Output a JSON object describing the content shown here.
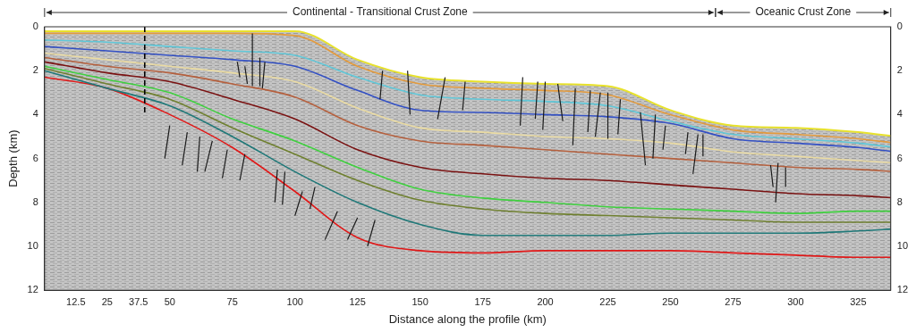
{
  "chart_data": {
    "type": "line",
    "xlabel": "Distance along the profile (km)",
    "ylabel": "Depth (km)",
    "x": [
      0,
      25,
      50,
      75,
      100,
      125,
      150,
      175,
      200,
      225,
      250,
      275,
      300,
      325,
      340
    ],
    "series": [
      {
        "color": "#e8e22c",
        "values": [
          0.2,
          0.2,
          0.2,
          0.2,
          0.2,
          1.5,
          2.3,
          2.5,
          2.6,
          2.7,
          3.8,
          4.5,
          4.6,
          4.8,
          5.0
        ]
      },
      {
        "color": "#e39a3c",
        "values": [
          0.3,
          0.3,
          0.3,
          0.3,
          0.4,
          1.8,
          2.6,
          2.8,
          2.9,
          3.1,
          4.0,
          4.7,
          4.9,
          5.1,
          5.3
        ]
      },
      {
        "color": "#5fc7d8",
        "values": [
          0.6,
          0.7,
          0.9,
          1.1,
          1.3,
          2.3,
          3.1,
          3.3,
          3.4,
          3.6,
          4.3,
          4.9,
          5.1,
          5.3,
          5.5
        ]
      },
      {
        "color": "#3350c4",
        "values": [
          0.9,
          1.1,
          1.3,
          1.5,
          1.8,
          2.9,
          3.8,
          3.9,
          4.0,
          4.1,
          4.4,
          5.1,
          5.3,
          5.5,
          5.7
        ]
      },
      {
        "color": "#eadba2",
        "values": [
          1.2,
          1.5,
          1.8,
          2.1,
          2.5,
          3.7,
          4.6,
          4.8,
          5.0,
          5.1,
          5.3,
          5.7,
          5.9,
          6.1,
          6.2
        ]
      },
      {
        "color": "#b5603e",
        "values": [
          1.4,
          1.8,
          2.1,
          2.6,
          3.2,
          4.5,
          5.2,
          5.4,
          5.6,
          5.8,
          6.0,
          6.2,
          6.4,
          6.5,
          6.6
        ]
      },
      {
        "color": "#7a1212",
        "values": [
          1.6,
          2.1,
          2.5,
          3.3,
          4.2,
          5.6,
          6.4,
          6.7,
          6.9,
          7.0,
          7.2,
          7.4,
          7.6,
          7.7,
          7.8
        ]
      },
      {
        "color": "#3fd03f",
        "values": [
          1.8,
          2.4,
          3.0,
          4.2,
          5.2,
          6.4,
          7.4,
          7.8,
          8.0,
          8.2,
          8.3,
          8.4,
          8.5,
          8.4,
          8.4
        ]
      },
      {
        "color": "#6f8030",
        "values": [
          1.9,
          2.6,
          3.3,
          4.6,
          5.8,
          7.0,
          7.9,
          8.3,
          8.5,
          8.6,
          8.7,
          8.8,
          8.9,
          8.9,
          8.9
        ]
      },
      {
        "color": "#1f7878",
        "values": [
          2.0,
          2.8,
          3.6,
          5.0,
          6.6,
          8.0,
          9.0,
          9.5,
          9.5,
          9.5,
          9.4,
          9.4,
          9.4,
          9.3,
          9.2
        ]
      },
      {
        "color": "#e01818",
        "values": [
          2.3,
          2.8,
          4.0,
          5.5,
          7.5,
          9.6,
          10.2,
          10.3,
          10.2,
          10.2,
          10.2,
          10.3,
          10.4,
          10.5,
          10.5
        ]
      }
    ],
    "faults": [
      {
        "x": [
          77,
          78
        ],
        "y": [
          1.6,
          2.3
        ]
      },
      {
        "x": [
          80,
          81
        ],
        "y": [
          1.8,
          2.6
        ]
      },
      {
        "x": [
          83,
          83
        ],
        "y": [
          0.3,
          2.7
        ]
      },
      {
        "x": [
          86,
          86
        ],
        "y": [
          1.4,
          2.7
        ]
      },
      {
        "x": [
          88,
          87
        ],
        "y": [
          1.6,
          2.8
        ]
      },
      {
        "x": [
          50,
          48
        ],
        "y": [
          4.5,
          6.0
        ]
      },
      {
        "x": [
          57,
          55
        ],
        "y": [
          4.8,
          6.3
        ]
      },
      {
        "x": [
          62,
          61
        ],
        "y": [
          5.0,
          6.6
        ]
      },
      {
        "x": [
          67,
          64
        ],
        "y": [
          5.2,
          6.6
        ]
      },
      {
        "x": [
          73,
          71
        ],
        "y": [
          5.6,
          6.9
        ]
      },
      {
        "x": [
          80,
          78
        ],
        "y": [
          5.8,
          7.0
        ]
      },
      {
        "x": [
          93,
          92
        ],
        "y": [
          6.5,
          8.0
        ]
      },
      {
        "x": [
          96,
          95
        ],
        "y": [
          6.6,
          8.1
        ]
      },
      {
        "x": [
          103,
          100
        ],
        "y": [
          7.5,
          8.6
        ]
      },
      {
        "x": [
          108,
          106
        ],
        "y": [
          7.3,
          8.3
        ]
      },
      {
        "x": [
          117,
          112
        ],
        "y": [
          8.4,
          9.7
        ]
      },
      {
        "x": [
          125,
          121
        ],
        "y": [
          8.7,
          9.7
        ]
      },
      {
        "x": [
          132,
          129
        ],
        "y": [
          8.8,
          10.0
        ]
      },
      {
        "x": [
          135,
          134
        ],
        "y": [
          2.0,
          3.3
        ]
      },
      {
        "x": [
          145,
          146
        ],
        "y": [
          2.0,
          4.0
        ]
      },
      {
        "x": [
          160,
          157
        ],
        "y": [
          2.3,
          4.2
        ]
      },
      {
        "x": [
          168,
          167
        ],
        "y": [
          2.5,
          3.8
        ]
      },
      {
        "x": [
          191,
          190
        ],
        "y": [
          2.3,
          4.5
        ]
      },
      {
        "x": [
          197,
          196
        ],
        "y": [
          2.5,
          4.2
        ]
      },
      {
        "x": [
          200,
          199
        ],
        "y": [
          2.5,
          4.7
        ]
      },
      {
        "x": [
          205,
          207
        ],
        "y": [
          2.6,
          4.3
        ]
      },
      {
        "x": [
          212,
          211
        ],
        "y": [
          2.8,
          5.4
        ]
      },
      {
        "x": [
          218,
          217
        ],
        "y": [
          2.9,
          4.8
        ]
      },
      {
        "x": [
          222,
          220
        ],
        "y": [
          3.0,
          5.0
        ]
      },
      {
        "x": [
          225,
          225
        ],
        "y": [
          3.0,
          5.1
        ]
      },
      {
        "x": [
          230,
          229
        ],
        "y": [
          3.3,
          4.9
        ]
      },
      {
        "x": [
          238,
          240
        ],
        "y": [
          3.9,
          6.3
        ]
      },
      {
        "x": [
          244,
          243
        ],
        "y": [
          4.0,
          6.0
        ]
      },
      {
        "x": [
          248,
          247
        ],
        "y": [
          4.5,
          5.6
        ]
      },
      {
        "x": [
          257,
          256
        ],
        "y": [
          4.8,
          5.8
        ]
      },
      {
        "x": [
          261,
          259
        ],
        "y": [
          4.9,
          6.7
        ]
      },
      {
        "x": [
          263,
          263
        ],
        "y": [
          4.9,
          5.9
        ]
      },
      {
        "x": [
          290,
          291
        ],
        "y": [
          6.3,
          7.3
        ]
      },
      {
        "x": [
          293,
          292
        ],
        "y": [
          6.2,
          8.0
        ]
      },
      {
        "x": [
          296,
          296
        ],
        "y": [
          6.4,
          7.3
        ]
      }
    ],
    "reference_line": {
      "x": 40,
      "y": [
        0,
        4
      ],
      "line_style": "dashed"
    },
    "zones": [
      {
        "label": "Continental - Transitional Crust Zone",
        "x": [
          0,
          268
        ]
      },
      {
        "label": "Oceanic Crust Zone",
        "x": [
          268,
          338
        ]
      }
    ],
    "xlim": [
      0,
      338
    ],
    "xticks": [
      12.5,
      25,
      37.5,
      50,
      75,
      100,
      125,
      150,
      175,
      200,
      225,
      250,
      275,
      300,
      325
    ],
    "ylim": [
      0,
      12
    ],
    "yticks": [
      0,
      2,
      4,
      6,
      8,
      10,
      12
    ],
    "y2lim": [
      0,
      12
    ],
    "y2ticks": [
      0,
      2,
      4,
      6,
      8,
      10,
      12
    ],
    "grid": false
  }
}
